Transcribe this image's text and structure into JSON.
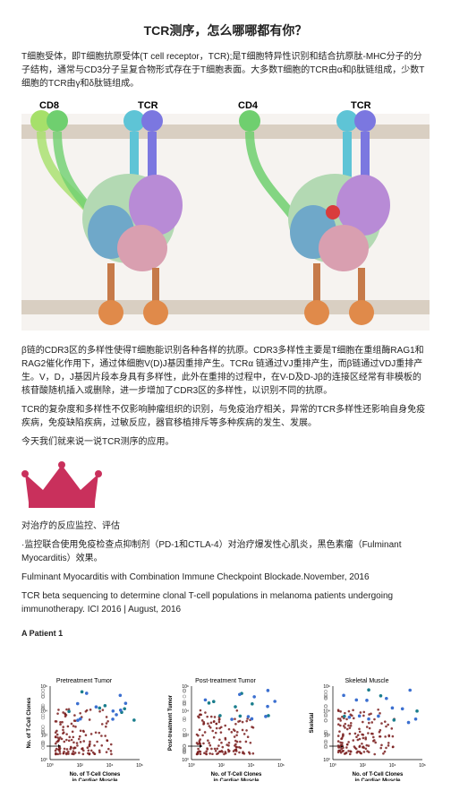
{
  "title": "TCR测序，怎么哪哪都有你？",
  "intro": "T细胞受体，即T细胞抗原受体(T cell receptor，TCR);是T细胞特异性识别和结合抗原肽-MHC分子的分子结构，通常与CD3分子呈复合物形式存在于T细胞表面。大多数T细胞的TCR由α和β肽链组成，少数T细胞的TCR由γ和δ肽链组成。",
  "labels": {
    "cd8": "CD8",
    "cd4": "CD4",
    "tcr": "TCR"
  },
  "p2": "β链的CDR3区的多样性使得T细胞能识别各种各样的抗原。CDR3多样性主要是T细胞在重组酶RAG1和RAG2催化作用下，通过体细胞V(D)J基因重排产生。TCRα 链通过VJ重排产生，而β链通过VDJ重排产生。V，D，J基因片段本身具有多样性，此外在重排的过程中，在V-D及D-Jβ的连接区经常有非模板的核苷酸随机插入或删除，进一步增加了CDR3区的多样性，以识别不同的抗原。",
  "p3": "TCR的复杂度和多样性不仅影响肿瘤组织的识别，与免疫治疗相关，异常的TCR多样性还影响自身免疫疾病，免疫缺陷疾病，过敏反应，器官移植排斥等多种疾病的发生、发展。",
  "p4": "今天我们就来说一说TCR测序的应用。",
  "sectionA": "对治疗的反应监控、评估",
  "bullet1": "·监控联合使用免疫检查点抑制剂（PD-1和CTLA-4）对治疗爆发性心肌炎，黑色素瘤（Fulminant Myocarditis）效果。",
  "ref1": "Fulminant Myocarditis with Combination Immune Checkpoint Blockade.November, 2016",
  "ref2": "TCR beta sequencing to determine clonal T-cell populations in melanoma patients undergoing immunotherapy. ICI 2016 | August, 2016",
  "panels": {
    "tag": "A  Patient 1",
    "t1": "Pretreatment Tumor",
    "t2": "Post-treatment Tumor",
    "t3": "Skeletal Muscle",
    "xlab": "No. of T-Cell Clones in Cardiac Muscle",
    "ylab1": "No. of T-Cell Clones",
    "ylab2": "Post-treatment Tumor",
    "ylab3": "Skeletal"
  },
  "colors": {
    "crown": "#c9305c",
    "darkred": "#7a1f1f",
    "teal": "#1a7d8c",
    "blue": "#3b6fd0",
    "grey": "#888"
  }
}
